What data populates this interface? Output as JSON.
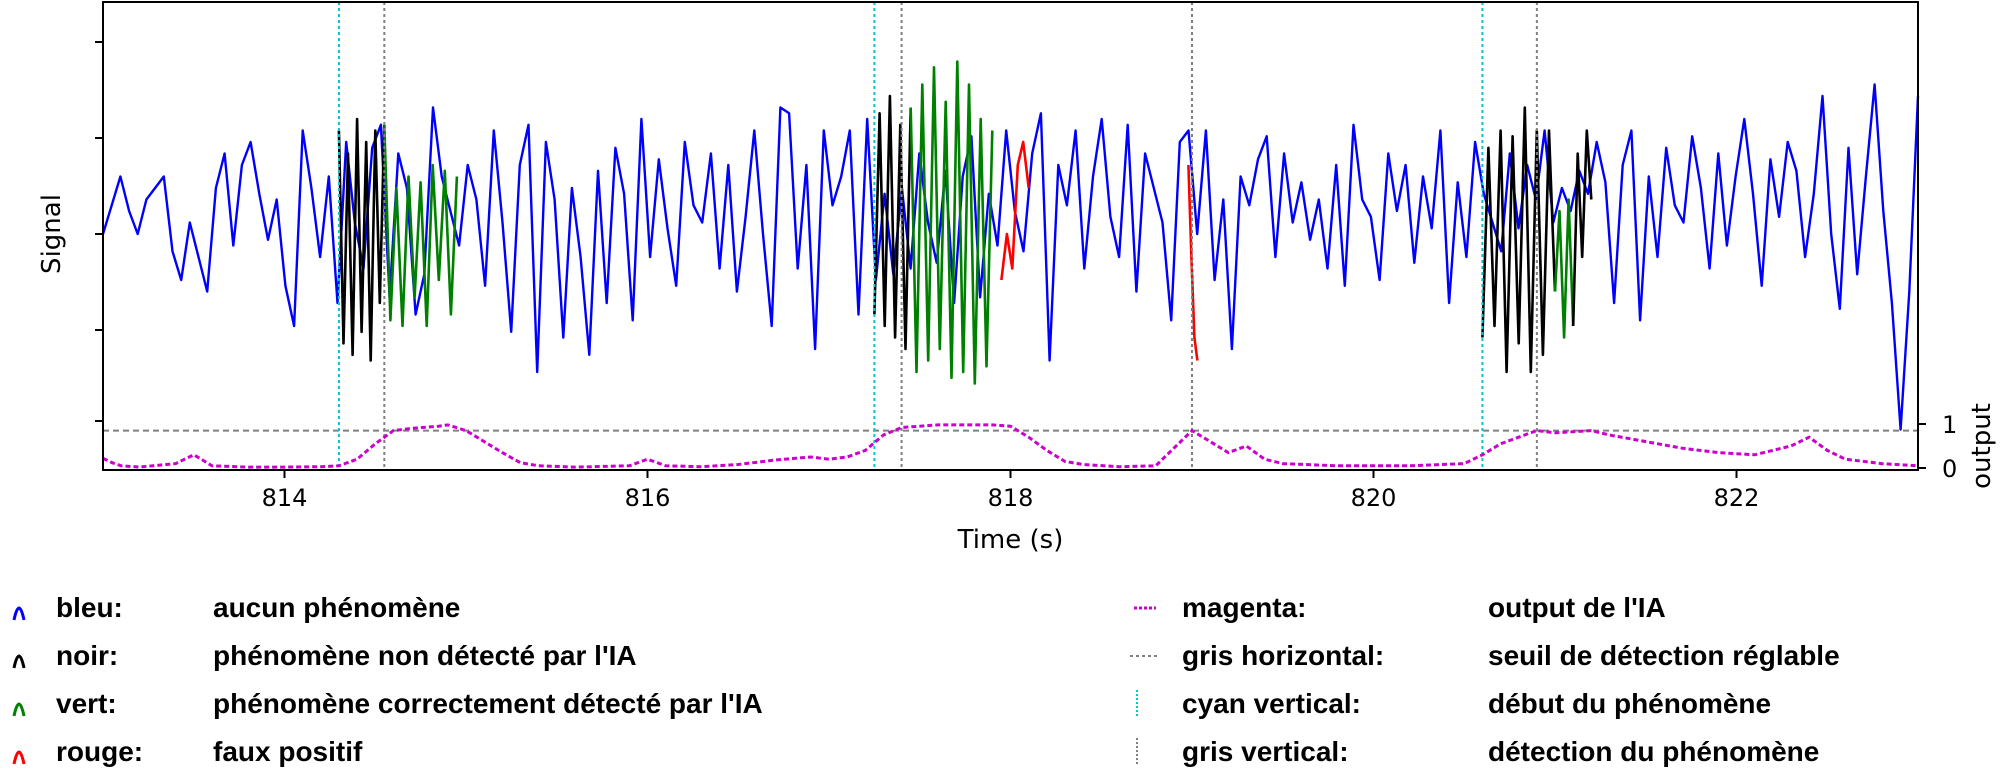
{
  "chart_data": {
    "type": "line",
    "xlabel": "Time (s)",
    "ylabel": "Signal",
    "ylabel2": "output",
    "xlim": [
      813.0,
      823.0
    ],
    "x_ticks": [
      "814",
      "816",
      "818",
      "820",
      "822"
    ],
    "y2_ticks": [
      "1",
      "0"
    ],
    "grid": false,
    "threshold": 0.85,
    "cyan_lines_x": [
      814.3,
      817.25,
      820.6
    ],
    "gray_lines_x": [
      814.55,
      817.4,
      819.0,
      820.9
    ],
    "signal": {
      "x_start": 813.0,
      "x_end": 823.0,
      "values": [
        0.0,
        0.25,
        0.5,
        0.2,
        0.0,
        0.3,
        0.4,
        0.5,
        -0.15,
        -0.4,
        0.1,
        -0.2,
        -0.5,
        0.4,
        0.7,
        -0.1,
        0.6,
        0.8,
        0.35,
        -0.05,
        0.3,
        -0.45,
        -0.8,
        0.9,
        0.4,
        -0.2,
        0.5,
        -0.6,
        0.8,
        0.1,
        -0.3,
        0.75,
        0.95,
        -0.55,
        0.7,
        0.4,
        -0.7,
        -0.35,
        1.1,
        0.5,
        0.2,
        -0.1,
        0.6,
        0.3,
        -0.45,
        0.9,
        0.1,
        -0.85,
        0.6,
        0.95,
        -1.2,
        0.8,
        0.3,
        -0.9,
        0.4,
        -0.2,
        -1.05,
        0.55,
        -0.6,
        0.75,
        0.35,
        -0.75,
        1.0,
        -0.2,
        0.65,
        0.05,
        -0.45,
        0.8,
        0.25,
        0.1,
        0.7,
        -0.3,
        0.6,
        -0.5,
        0.15,
        0.9,
        0.0,
        -0.8,
        1.1,
        1.05,
        -0.3,
        0.6,
        -1.0,
        0.9,
        0.25,
        0.5,
        0.9,
        -0.7,
        1.0,
        -0.4,
        0.35,
        -0.35,
        0.4,
        -0.3,
        0.7,
        0.1,
        -0.25,
        0.55,
        -0.6,
        0.5,
        0.85,
        -0.55,
        0.35,
        -0.1,
        0.9,
        0.2,
        -0.15,
        0.7,
        1.05,
        -1.1,
        0.6,
        0.25,
        0.9,
        -0.3,
        0.5,
        1.0,
        0.15,
        -0.2,
        0.95,
        -0.5,
        0.7,
        0.4,
        0.1,
        -0.75,
        0.8,
        0.9,
        0.0,
        0.9,
        -0.4,
        0.3,
        -1.0,
        0.5,
        0.25,
        0.65,
        0.85,
        -0.2,
        0.7,
        0.1,
        0.45,
        -0.05,
        0.3,
        -0.3,
        0.6,
        -0.45,
        0.95,
        0.3,
        0.15,
        -0.4,
        0.7,
        0.2,
        0.6,
        -0.25,
        0.5,
        0.05,
        0.9,
        -0.6,
        0.45,
        -0.2,
        0.8,
        0.35,
        0.1,
        -0.15,
        0.7,
        0.05,
        0.6,
        0.3,
        0.9,
        0.1,
        0.4,
        0.2,
        0.55,
        0.35,
        0.8,
        0.45,
        -0.6,
        0.6,
        0.9,
        -0.75,
        0.5,
        -0.2,
        0.75,
        0.25,
        0.1,
        0.85,
        0.4,
        -0.3,
        0.7,
        -0.1,
        0.5,
        1.0,
        0.35,
        -0.45,
        0.65,
        0.15,
        0.8,
        0.55,
        -0.2,
        0.35,
        1.2,
        0.0,
        -0.65,
        0.75,
        -0.35,
        0.5,
        1.3,
        0.2,
        -0.6,
        -1.7,
        -0.5,
        1.2
      ]
    },
    "signal_range": [
      -2.0,
      2.0
    ],
    "segments": [
      {
        "color": "black",
        "x_start": 814.3,
        "x_end": 814.55,
        "wave": [
          0.9,
          -0.95,
          0.7,
          -1.05,
          1.0,
          -0.85,
          0.8,
          -1.1,
          0.9,
          -0.6,
          0.95
        ]
      },
      {
        "color": "green",
        "x_start": 814.55,
        "x_end": 814.95,
        "wave": [
          0.95,
          -0.75,
          0.4,
          -0.8,
          0.5,
          -0.55,
          0.45,
          -0.8,
          0.6,
          -0.4,
          0.55,
          -0.7,
          0.5
        ]
      },
      {
        "color": "black",
        "x_start": 817.25,
        "x_end": 817.45,
        "wave": [
          -0.7,
          1.05,
          -0.8,
          1.2,
          -0.9,
          0.95,
          -1.0,
          1.1
        ]
      },
      {
        "color": "green",
        "x_start": 817.45,
        "x_end": 817.9,
        "wave": [
          1.1,
          -1.2,
          1.3,
          -1.1,
          1.45,
          -1.0,
          1.15,
          -1.25,
          1.5,
          -1.2,
          1.3,
          -1.3,
          1.0,
          -1.15,
          0.9
        ]
      },
      {
        "color": "red",
        "x_start": 817.95,
        "x_end": 818.1,
        "wave": [
          -0.4,
          0.0,
          -0.3,
          0.6,
          0.8,
          0.4
        ]
      },
      {
        "color": "red",
        "x_start": 818.98,
        "x_end": 819.03,
        "wave": [
          0.6,
          -0.2,
          -0.9,
          -1.1
        ]
      },
      {
        "color": "black",
        "x_start": 820.6,
        "x_end": 821.0,
        "wave": [
          -0.9,
          0.75,
          -0.8,
          0.9,
          -1.2,
          0.85,
          -0.95,
          1.1,
          -1.2,
          0.9,
          -1.05,
          0.9,
          -0.5
        ]
      },
      {
        "color": "green",
        "x_start": 821.0,
        "x_end": 821.1,
        "wave": [
          -0.5,
          0.2,
          -0.9,
          0.3,
          -0.8
        ]
      },
      {
        "color": "black",
        "x_start": 821.1,
        "x_end": 821.2,
        "wave": [
          -0.8,
          0.7,
          -0.2,
          0.9,
          0.3
        ]
      }
    ],
    "output_series": {
      "points": [
        [
          813.0,
          0.22
        ],
        [
          813.05,
          0.12
        ],
        [
          813.1,
          0.05
        ],
        [
          813.2,
          0.02
        ],
        [
          813.4,
          0.1
        ],
        [
          813.5,
          0.3
        ],
        [
          813.55,
          0.18
        ],
        [
          813.6,
          0.05
        ],
        [
          813.8,
          0.02
        ],
        [
          814.0,
          0.02
        ],
        [
          814.2,
          0.03
        ],
        [
          814.3,
          0.05
        ],
        [
          814.4,
          0.2
        ],
        [
          814.5,
          0.55
        ],
        [
          814.6,
          0.85
        ],
        [
          814.7,
          0.9
        ],
        [
          814.85,
          0.95
        ],
        [
          814.9,
          0.98
        ],
        [
          815.0,
          0.85
        ],
        [
          815.1,
          0.6
        ],
        [
          815.2,
          0.35
        ],
        [
          815.3,
          0.12
        ],
        [
          815.4,
          0.05
        ],
        [
          815.6,
          0.02
        ],
        [
          815.9,
          0.05
        ],
        [
          816.0,
          0.2
        ],
        [
          816.1,
          0.05
        ],
        [
          816.3,
          0.03
        ],
        [
          816.5,
          0.08
        ],
        [
          816.7,
          0.18
        ],
        [
          816.9,
          0.25
        ],
        [
          817.0,
          0.2
        ],
        [
          817.1,
          0.25
        ],
        [
          817.2,
          0.4
        ],
        [
          817.3,
          0.75
        ],
        [
          817.4,
          0.92
        ],
        [
          817.6,
          0.98
        ],
        [
          817.9,
          0.98
        ],
        [
          818.0,
          0.95
        ],
        [
          818.1,
          0.7
        ],
        [
          818.2,
          0.4
        ],
        [
          818.3,
          0.15
        ],
        [
          818.4,
          0.08
        ],
        [
          818.6,
          0.03
        ],
        [
          818.8,
          0.05
        ],
        [
          819.0,
          0.85
        ],
        [
          819.1,
          0.6
        ],
        [
          819.2,
          0.35
        ],
        [
          819.3,
          0.5
        ],
        [
          819.4,
          0.2
        ],
        [
          819.5,
          0.1
        ],
        [
          819.8,
          0.05
        ],
        [
          820.2,
          0.05
        ],
        [
          820.5,
          0.1
        ],
        [
          820.6,
          0.3
        ],
        [
          820.7,
          0.55
        ],
        [
          820.8,
          0.7
        ],
        [
          820.9,
          0.85
        ],
        [
          821.0,
          0.8
        ],
        [
          821.2,
          0.85
        ],
        [
          821.3,
          0.75
        ],
        [
          821.5,
          0.6
        ],
        [
          821.7,
          0.45
        ],
        [
          821.9,
          0.35
        ],
        [
          822.1,
          0.3
        ],
        [
          822.3,
          0.5
        ],
        [
          822.4,
          0.7
        ],
        [
          822.5,
          0.4
        ],
        [
          822.6,
          0.2
        ],
        [
          822.8,
          0.1
        ],
        [
          823.0,
          0.05
        ]
      ]
    },
    "ranges": {
      "output": [
        0,
        1
      ]
    }
  },
  "legend": {
    "left": [
      {
        "name": "bleu:",
        "desc": "aucun phénomène",
        "color": "#0000ff",
        "icon": "arc-icon"
      },
      {
        "name": "noir:",
        "desc": "phénomène non détecté par l'IA",
        "color": "#000000",
        "icon": "arc-icon"
      },
      {
        "name": "vert:",
        "desc": "phénomène correctement détecté par l'IA",
        "color": "#008000",
        "icon": "arc-icon"
      },
      {
        "name": "rouge:",
        "desc": "faux positif",
        "color": "#ff0000",
        "icon": "arc-icon"
      }
    ],
    "right": [
      {
        "name": "magenta:",
        "desc": "output de l'IA",
        "color": "#cc00cc",
        "icon": "dash-line-icon"
      },
      {
        "name": "gris horizontal:",
        "desc": "seuil de détection réglable",
        "color": "#808080",
        "icon": "dotted-hline-icon"
      },
      {
        "name": "cyan vertical:",
        "desc": "début du phénomène",
        "color": "#00c8d2",
        "icon": "dotted-vline-icon"
      },
      {
        "name": "gris vertical:",
        "desc": "détection du phénomène",
        "color": "#808080",
        "icon": "dotted-vline-icon"
      }
    ]
  }
}
